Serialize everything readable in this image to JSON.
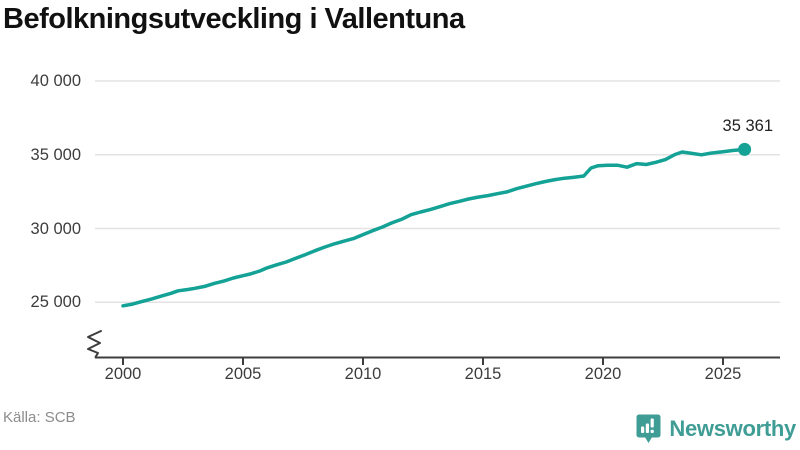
{
  "title": "Befolkningsutveckling i Vallentuna",
  "source": "Källa: SCB",
  "branding": {
    "name": "Newsworthy",
    "icon": "newsworthy-pin-chart-icon"
  },
  "colors": {
    "line": "#13a295",
    "grid": "#e3e3e3",
    "axis": "#3d3d3d",
    "text": "#3d3d3d",
    "muted": "#8c8c8c",
    "brand": "#3f9d96",
    "title": "#111111"
  },
  "chart_data": {
    "type": "line",
    "title": "Befolkningsutveckling i Vallentuna",
    "xlabel": "",
    "ylabel": "",
    "grid": "horizontal",
    "legend": "none",
    "axis_break": true,
    "xlim": [
      1998.8,
      2027.4
    ],
    "ylim": [
      25000,
      40000
    ],
    "y_ticks": [
      {
        "value": 25000,
        "label": "25 000"
      },
      {
        "value": 30000,
        "label": "30 000"
      },
      {
        "value": 35000,
        "label": "35 000"
      },
      {
        "value": 40000,
        "label": "40 000"
      }
    ],
    "x_ticks": [
      {
        "year": 2000,
        "label": "2000"
      },
      {
        "year": 2005,
        "label": "2005"
      },
      {
        "year": 2010,
        "label": "2010"
      },
      {
        "year": 2015,
        "label": "2015"
      },
      {
        "year": 2020,
        "label": "2020"
      },
      {
        "year": 2025,
        "label": "2025"
      }
    ],
    "end_label": "35 361",
    "end_value": 35361,
    "series": [
      {
        "name": "Vallentuna",
        "points": [
          [
            2000.0,
            24760
          ],
          [
            2000.4,
            24880
          ],
          [
            2000.8,
            25060
          ],
          [
            2001.2,
            25230
          ],
          [
            2001.6,
            25420
          ],
          [
            2002.0,
            25610
          ],
          [
            2002.3,
            25780
          ],
          [
            2002.7,
            25870
          ],
          [
            2003.0,
            25950
          ],
          [
            2003.4,
            26080
          ],
          [
            2003.8,
            26280
          ],
          [
            2004.2,
            26440
          ],
          [
            2004.6,
            26650
          ],
          [
            2005.0,
            26800
          ],
          [
            2005.3,
            26920
          ],
          [
            2005.7,
            27120
          ],
          [
            2006.0,
            27330
          ],
          [
            2006.4,
            27540
          ],
          [
            2006.8,
            27730
          ],
          [
            2007.2,
            27980
          ],
          [
            2007.6,
            28230
          ],
          [
            2008.0,
            28500
          ],
          [
            2008.4,
            28740
          ],
          [
            2008.8,
            28960
          ],
          [
            2009.2,
            29140
          ],
          [
            2009.6,
            29320
          ],
          [
            2010.0,
            29590
          ],
          [
            2010.4,
            29850
          ],
          [
            2010.8,
            30100
          ],
          [
            2011.2,
            30380
          ],
          [
            2011.6,
            30620
          ],
          [
            2012.0,
            30940
          ],
          [
            2012.4,
            31120
          ],
          [
            2012.8,
            31280
          ],
          [
            2013.2,
            31480
          ],
          [
            2013.6,
            31680
          ],
          [
            2014.0,
            31840
          ],
          [
            2014.4,
            32000
          ],
          [
            2014.8,
            32130
          ],
          [
            2015.2,
            32230
          ],
          [
            2015.6,
            32360
          ],
          [
            2016.0,
            32480
          ],
          [
            2016.4,
            32700
          ],
          [
            2016.8,
            32870
          ],
          [
            2017.2,
            33040
          ],
          [
            2017.6,
            33190
          ],
          [
            2018.0,
            33320
          ],
          [
            2018.4,
            33410
          ],
          [
            2018.8,
            33480
          ],
          [
            2019.2,
            33560
          ],
          [
            2019.5,
            34100
          ],
          [
            2019.8,
            34260
          ],
          [
            2020.2,
            34290
          ],
          [
            2020.6,
            34290
          ],
          [
            2021.0,
            34160
          ],
          [
            2021.4,
            34400
          ],
          [
            2021.8,
            34340
          ],
          [
            2022.2,
            34490
          ],
          [
            2022.6,
            34670
          ],
          [
            2023.0,
            35020
          ],
          [
            2023.3,
            35190
          ],
          [
            2023.7,
            35090
          ],
          [
            2024.1,
            35000
          ],
          [
            2024.5,
            35110
          ],
          [
            2025.0,
            35210
          ],
          [
            2025.4,
            35290
          ],
          [
            2025.9,
            35361
          ]
        ]
      }
    ]
  }
}
